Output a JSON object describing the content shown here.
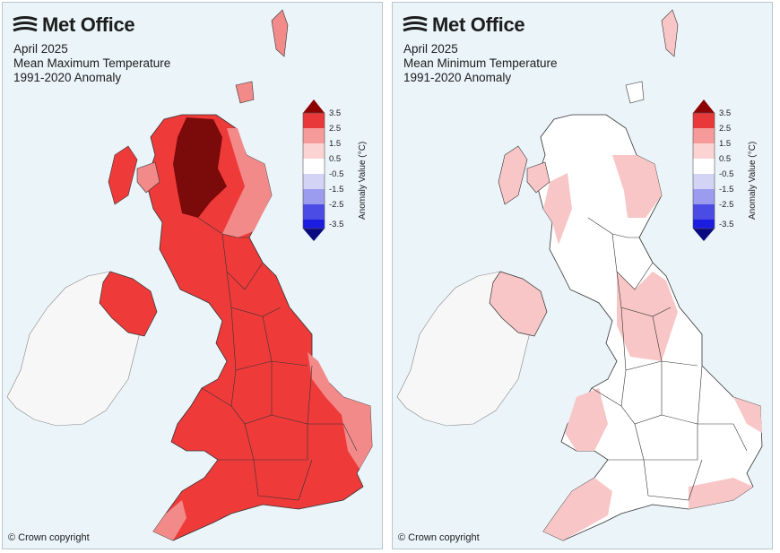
{
  "maps": [
    {
      "brand": "Met Office",
      "title_line1": "April 2025",
      "title_line2": "Mean Maximum Temperature",
      "title_line3": "1991-2020 Anomaly",
      "copyright": "© Crown copyright",
      "dominant_band": "1.5 to 2.5 and above",
      "band_colors": {
        "highest": "#7b0a0a",
        "high": "#c81e1e",
        "mid": "#ef3a3a",
        "low": "#f6a0a0",
        "neutral": "#ffffff"
      }
    },
    {
      "brand": "Met Office",
      "title_line1": "April 2025",
      "title_line2": "Mean Minimum Temperature",
      "title_line3": "1991-2020 Anomaly",
      "copyright": "© Crown copyright",
      "dominant_band": "-0.5 to 1.5",
      "band_colors": {
        "low": "#f8c6c6",
        "neutral": "#ffffff"
      }
    }
  ],
  "colorbar": {
    "title": "Anomaly Value (°C)",
    "ticks": [
      "3.5",
      "2.5",
      "1.5",
      "0.5",
      "-0.5",
      "-1.5",
      "-2.5",
      "-3.5"
    ],
    "colors": [
      "#8c0000",
      "#e8383a",
      "#f69a9a",
      "#fbd3d3",
      "#ffffff",
      "#d3d3f6",
      "#9b9bef",
      "#4b4be6",
      "#1c1ce0",
      "#0a0a80"
    ]
  },
  "ireland_color": "#f7f7f7",
  "sea_color": "#eaf4f9"
}
